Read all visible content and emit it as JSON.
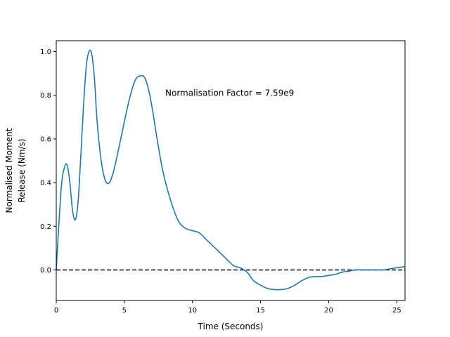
{
  "chart_data": {
    "type": "line",
    "xlabel": "Time (Seconds)",
    "ylabel_lines": [
      "Normalised Moment",
      "Release (Nm/s)"
    ],
    "xlim": [
      0,
      25.6
    ],
    "ylim": [
      -0.14,
      1.05
    ],
    "xticks": [
      0,
      5,
      10,
      15,
      20,
      25
    ],
    "yticks": [
      0.0,
      0.2,
      0.4,
      0.6,
      0.8,
      1.0
    ],
    "xtick_labels": [
      "0",
      "5",
      "10",
      "15",
      "20",
      "25"
    ],
    "ytick_labels": [
      "0.0",
      "0.2",
      "0.4",
      "0.6",
      "0.8",
      "1.0"
    ],
    "grid": false,
    "annotation": {
      "text": "Normalisation Factor = 7.59e9",
      "x": 8.0,
      "y": 0.81
    },
    "reference_line": {
      "y": 0.0,
      "style": "dashed",
      "color": "#000000"
    },
    "series": [
      {
        "color": "#1f77b4",
        "x": [
          0,
          0.2,
          0.4,
          0.6,
          0.8,
          1.0,
          1.2,
          1.4,
          1.6,
          1.8,
          2.0,
          2.2,
          2.4,
          2.6,
          2.8,
          3.0,
          3.3,
          3.6,
          3.9,
          4.2,
          4.6,
          5.0,
          5.4,
          5.8,
          6.2,
          6.5,
          6.8,
          7.1,
          7.4,
          7.8,
          8.2,
          8.6,
          9.0,
          9.5,
          10.0,
          10.5,
          11.0,
          11.5,
          12.0,
          12.5,
          13.0,
          13.5,
          14.0,
          14.5,
          15.0,
          15.5,
          16.0,
          16.5,
          17.0,
          17.5,
          18.0,
          18.5,
          19.0,
          19.5,
          20.0,
          20.5,
          21.0,
          21.5,
          22.0,
          22.5,
          23.0,
          23.5,
          24.0,
          24.5,
          25.0,
          25.6
        ],
        "y": [
          0.0,
          0.22,
          0.4,
          0.47,
          0.48,
          0.4,
          0.27,
          0.23,
          0.31,
          0.52,
          0.75,
          0.93,
          1.0,
          0.99,
          0.88,
          0.68,
          0.5,
          0.41,
          0.4,
          0.45,
          0.56,
          0.68,
          0.79,
          0.87,
          0.89,
          0.88,
          0.82,
          0.72,
          0.6,
          0.46,
          0.36,
          0.28,
          0.22,
          0.19,
          0.18,
          0.17,
          0.14,
          0.11,
          0.08,
          0.05,
          0.02,
          0.01,
          -0.01,
          -0.05,
          -0.07,
          -0.085,
          -0.09,
          -0.09,
          -0.085,
          -0.07,
          -0.05,
          -0.035,
          -0.03,
          -0.03,
          -0.025,
          -0.02,
          -0.01,
          -0.005,
          0.0,
          0.0,
          0.0,
          0.0,
          0.0,
          0.005,
          0.01,
          0.015
        ]
      }
    ]
  }
}
